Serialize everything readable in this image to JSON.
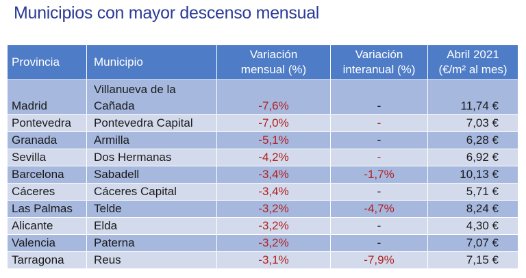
{
  "title": "Municipios con mayor descenso mensual",
  "table": {
    "headers": {
      "provincia": "Provincia",
      "municipio": "Municipio",
      "mensual_l1": "Variación",
      "mensual_l2": "mensual (%)",
      "interanual_l1": "Variación",
      "interanual_l2": "interanual (%)",
      "precio_l1": "Abril 2021",
      "precio_l2": "(€/m² al mes)"
    },
    "rows": [
      {
        "provincia": "Madrid",
        "municipio": "Villanueva de la Cañada",
        "mensual": "-7,6%",
        "interanual": "-",
        "precio": "11,74 €"
      },
      {
        "provincia": "Pontevedra",
        "municipio": "Pontevedra Capital",
        "mensual": "-7,0%",
        "interanual": "-",
        "precio": "7,03 €"
      },
      {
        "provincia": "Granada",
        "municipio": "Armilla",
        "mensual": "-5,1%",
        "interanual": "-",
        "precio": "6,28 €"
      },
      {
        "provincia": "Sevilla",
        "municipio": "Dos Hermanas",
        "mensual": "-4,2%",
        "interanual": "-",
        "precio": "6,92 €"
      },
      {
        "provincia": "Barcelona",
        "municipio": "Sabadell",
        "mensual": "-3,4%",
        "interanual": "-1,7%",
        "precio": "10,13 €"
      },
      {
        "provincia": "Cáceres",
        "municipio": "Cáceres Capital",
        "mensual": "-3,4%",
        "interanual": "-",
        "precio": "5,71 €"
      },
      {
        "provincia": "Las Palmas",
        "municipio": "Telde",
        "mensual": "-3,2%",
        "interanual": "-4,7%",
        "precio": "8,24 €"
      },
      {
        "provincia": "Alicante",
        "municipio": "Elda",
        "mensual": "-3,2%",
        "interanual": "-",
        "precio": "4,30 €"
      },
      {
        "provincia": "Valencia",
        "municipio": "Paterna",
        "mensual": "-3,2%",
        "interanual": "-",
        "precio": "7,07 €"
      },
      {
        "provincia": "Tarragona",
        "municipio": "Reus",
        "mensual": "-3,1%",
        "interanual": "-7,9%",
        "precio": "7,15 €"
      }
    ]
  }
}
